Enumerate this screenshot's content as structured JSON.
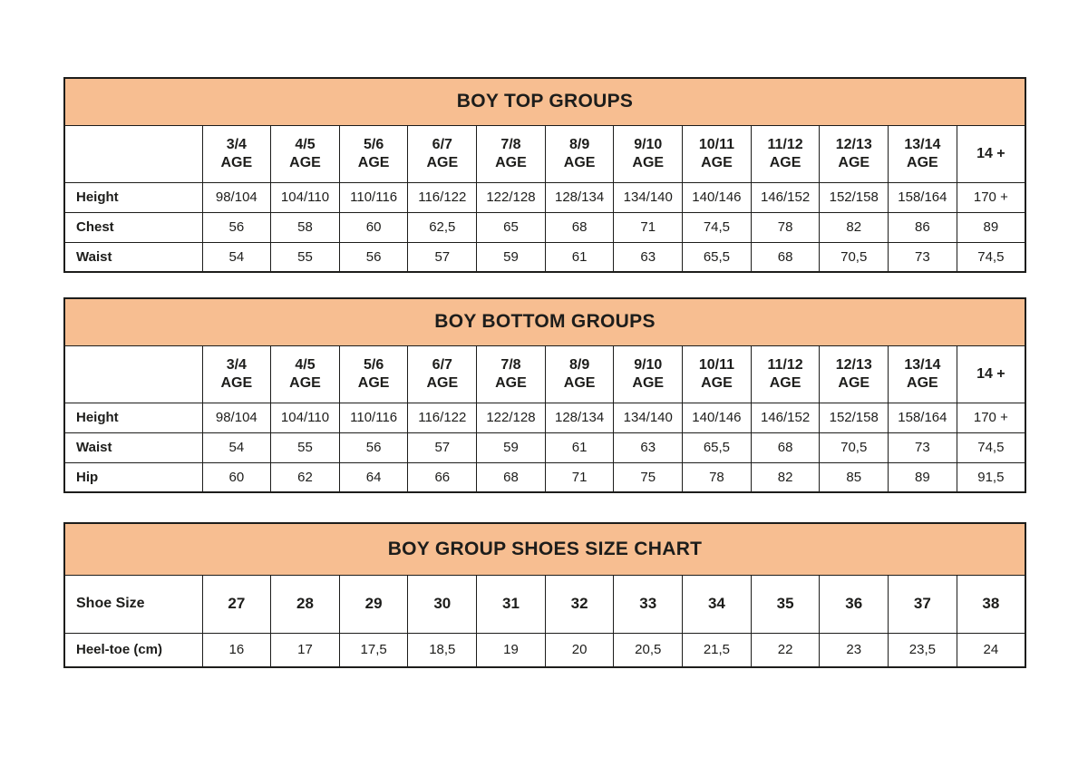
{
  "colors": {
    "band": "#F7BE91",
    "border": "#1D1D1B",
    "text": "#1D1D1B",
    "background": "#FFFFFF"
  },
  "tables": [
    {
      "id": "boy-top-groups",
      "title": "BOY TOP GROUPS",
      "header": {
        "label": "",
        "columns": [
          {
            "line1": "3/4",
            "line2": "AGE"
          },
          {
            "line1": "4/5",
            "line2": "AGE"
          },
          {
            "line1": "5/6",
            "line2": "AGE"
          },
          {
            "line1": "6/7",
            "line2": "AGE"
          },
          {
            "line1": "7/8",
            "line2": "AGE"
          },
          {
            "line1": "8/9",
            "line2": "AGE"
          },
          {
            "line1": "9/10",
            "line2": "AGE"
          },
          {
            "line1": "10/11",
            "line2": "AGE"
          },
          {
            "line1": "11/12",
            "line2": "AGE"
          },
          {
            "line1": "12/13",
            "line2": "AGE"
          },
          {
            "line1": "13/14",
            "line2": "AGE"
          },
          {
            "line1": "14 +",
            "line2": ""
          }
        ]
      },
      "rows": [
        {
          "label": "Height",
          "values": [
            "98/104",
            "104/110",
            "110/116",
            "116/122",
            "122/128",
            "128/134",
            "134/140",
            "140/146",
            "146/152",
            "152/158",
            "158/164",
            "170 +"
          ]
        },
        {
          "label": "Chest",
          "values": [
            "56",
            "58",
            "60",
            "62,5",
            "65",
            "68",
            "71",
            "74,5",
            "78",
            "82",
            "86",
            "89"
          ]
        },
        {
          "label": "Waist",
          "values": [
            "54",
            "55",
            "56",
            "57",
            "59",
            "61",
            "63",
            "65,5",
            "68",
            "70,5",
            "73",
            "74,5"
          ]
        }
      ]
    },
    {
      "id": "boy-bottom-groups",
      "title": "BOY BOTTOM GROUPS",
      "header": {
        "label": "",
        "columns": [
          {
            "line1": "3/4",
            "line2": "AGE"
          },
          {
            "line1": "4/5",
            "line2": "AGE"
          },
          {
            "line1": "5/6",
            "line2": "AGE"
          },
          {
            "line1": "6/7",
            "line2": "AGE"
          },
          {
            "line1": "7/8",
            "line2": "AGE"
          },
          {
            "line1": "8/9",
            "line2": "AGE"
          },
          {
            "line1": "9/10",
            "line2": "AGE"
          },
          {
            "line1": "10/11",
            "line2": "AGE"
          },
          {
            "line1": "11/12",
            "line2": "AGE"
          },
          {
            "line1": "12/13",
            "line2": "AGE"
          },
          {
            "line1": "13/14",
            "line2": "AGE"
          },
          {
            "line1": "14 +",
            "line2": ""
          }
        ]
      },
      "rows": [
        {
          "label": "Height",
          "values": [
            "98/104",
            "104/110",
            "110/116",
            "116/122",
            "122/128",
            "128/134",
            "134/140",
            "140/146",
            "146/152",
            "152/158",
            "158/164",
            "170 +"
          ]
        },
        {
          "label": "Waist",
          "values": [
            "54",
            "55",
            "56",
            "57",
            "59",
            "61",
            "63",
            "65,5",
            "68",
            "70,5",
            "73",
            "74,5"
          ]
        },
        {
          "label": "Hip",
          "values": [
            "60",
            "62",
            "64",
            "66",
            "68",
            "71",
            "75",
            "78",
            "82",
            "85",
            "89",
            "91,5"
          ]
        }
      ]
    },
    {
      "id": "boy-group-shoes-size-chart",
      "title": "BOY GROUP SHOES SIZE CHART",
      "header": {
        "label": "Shoe Size",
        "columns": [
          {
            "line1": "27",
            "line2": ""
          },
          {
            "line1": "28",
            "line2": ""
          },
          {
            "line1": "29",
            "line2": ""
          },
          {
            "line1": "30",
            "line2": ""
          },
          {
            "line1": "31",
            "line2": ""
          },
          {
            "line1": "32",
            "line2": ""
          },
          {
            "line1": "33",
            "line2": ""
          },
          {
            "line1": "34",
            "line2": ""
          },
          {
            "line1": "35",
            "line2": ""
          },
          {
            "line1": "36",
            "line2": ""
          },
          {
            "line1": "37",
            "line2": ""
          },
          {
            "line1": "38",
            "line2": ""
          }
        ]
      },
      "rows": [
        {
          "label": "Heel-toe (cm)",
          "values": [
            "16",
            "17",
            "17,5",
            "18,5",
            "19",
            "20",
            "20,5",
            "21,5",
            "22",
            "23",
            "23,5",
            "24"
          ]
        }
      ]
    }
  ]
}
